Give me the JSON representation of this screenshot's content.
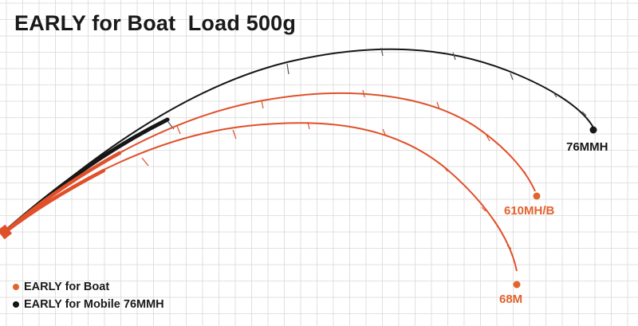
{
  "title": "EARLY for Boat  Load 500g",
  "colors": {
    "grid": "#d8d8d8",
    "black_rod": "#161616",
    "orange_rod": "#e0502a",
    "orange_dot": "#e3632d"
  },
  "rods": [
    {
      "name": "76MMH",
      "color": "#161616"
    },
    {
      "name": "610MH/B",
      "color": "#e0502a"
    },
    {
      "name": "68M",
      "color": "#e0502a"
    }
  ],
  "legend": [
    {
      "label": "EARLY for Boat",
      "color": "#e3632d"
    },
    {
      "label": "EARLY for Mobile 76MMH",
      "color": "#161616"
    }
  ]
}
